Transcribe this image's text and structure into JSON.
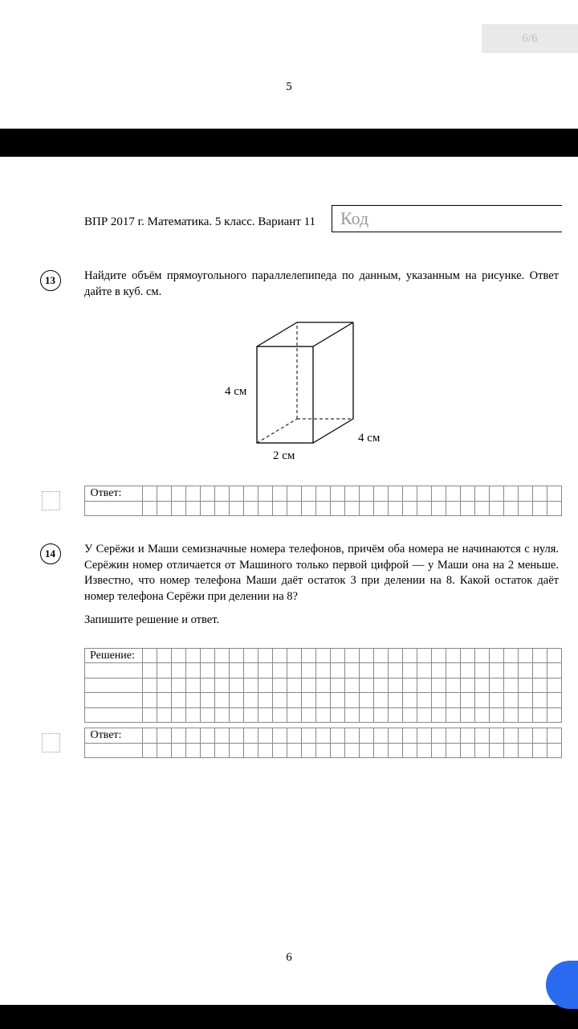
{
  "topTab": "6/6",
  "topPageNumber": "5",
  "header": {
    "title": "ВПР 2017 г. Математика. 5 класс. Вариант 11",
    "codePlaceholder": "Код"
  },
  "task13": {
    "number": "13",
    "text": "Найдите объём прямоугольного параллелепипеда по данным, указанным на рисунке. Ответ дайте в куб. см.",
    "figure": {
      "height_label": "4 см",
      "depth_label": "4 см",
      "width_label": "2 см",
      "stroke": "#000000",
      "dash": "4,3"
    },
    "answerLabel": "Ответ:"
  },
  "task14": {
    "number": "14",
    "text": "У Серёжи и Маши семизначные номера телефонов, причём оба номера не начинаются с нуля. Серёжин номер отличается от Машиного только первой цифрой — у Маши она на 2 меньше. Известно, что номер телефона Маши даёт остаток 3 при делении на 8. Какой остаток даёт номер телефона Серёжи при делении на 8?",
    "instruction": "Запишите решение и ответ.",
    "solutionLabel": "Решение:",
    "answerLabel": "Ответ:"
  },
  "grid": {
    "cols": 29,
    "answerRows": 2,
    "solutionRows": 5,
    "borderColor": "#888888"
  },
  "bottomPageNumber": "6",
  "colors": {
    "pageBg": "#ffffff",
    "screenBg": "#000000",
    "blue": "#2a6af0"
  }
}
